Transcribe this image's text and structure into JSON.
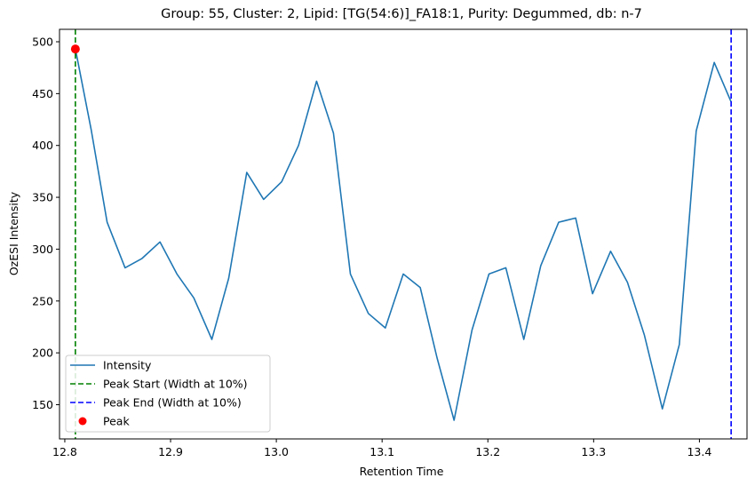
{
  "chart_data": {
    "type": "line",
    "title": "Group: 55, Cluster: 2, Lipid: [TG(54:6)]_FA18:1, Purity: Degummed, db: n-7",
    "xlabel": "Retention Time",
    "ylabel": "OzESI Intensity",
    "xlim": [
      12.795,
      13.445
    ],
    "ylim": [
      117,
      512
    ],
    "xticks": [
      12.8,
      12.9,
      13.0,
      13.1,
      13.2,
      13.3,
      13.4
    ],
    "xtick_labels": [
      "12.8",
      "12.9",
      "13.0",
      "13.1",
      "13.2",
      "13.3",
      "13.4"
    ],
    "yticks": [
      150,
      200,
      250,
      300,
      350,
      400,
      450,
      500
    ],
    "ytick_labels": [
      "150",
      "200",
      "250",
      "300",
      "350",
      "400",
      "450",
      "500"
    ],
    "grid": false,
    "legend_position": "lower-left",
    "series": [
      {
        "name": "Intensity",
        "color": "#1f77b4",
        "x": [
          12.81,
          12.825,
          12.84,
          12.857,
          12.873,
          12.89,
          12.906,
          12.922,
          12.939,
          12.955,
          12.972,
          12.988,
          13.005,
          13.021,
          13.038,
          13.054,
          13.07,
          13.087,
          13.103,
          13.12,
          13.136,
          13.152,
          13.168,
          13.185,
          13.201,
          13.217,
          13.234,
          13.25,
          13.267,
          13.283,
          13.299,
          13.316,
          13.332,
          13.348,
          13.365,
          13.381,
          13.397,
          13.414,
          13.43
        ],
        "y": [
          493,
          415,
          326,
          282,
          291,
          307,
          276,
          253,
          213,
          272,
          374,
          348,
          365,
          400,
          462,
          412,
          276,
          238,
          224,
          276,
          263,
          195,
          135,
          222,
          276,
          282,
          213,
          284,
          326,
          330,
          257,
          298,
          268,
          217,
          146,
          208,
          414,
          480,
          442
        ]
      }
    ],
    "vlines": [
      {
        "name": "Peak Start (Width at 10%)",
        "x": 12.81,
        "color": "#008000",
        "style": "dashed"
      },
      {
        "name": "Peak End (Width at 10%)",
        "x": 13.43,
        "color": "#0000ff",
        "style": "dashed"
      }
    ],
    "markers": [
      {
        "name": "Peak",
        "x": 12.81,
        "y": 493,
        "color": "#ff0000"
      }
    ]
  }
}
